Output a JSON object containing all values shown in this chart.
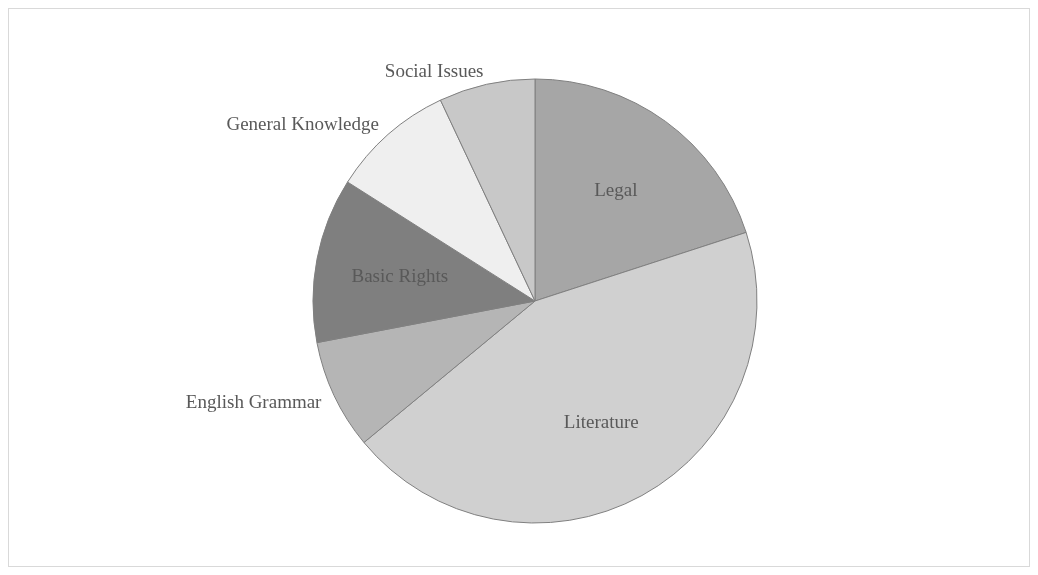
{
  "chart_data": {
    "type": "pie",
    "categories": [
      "Legal",
      "Literature",
      "English Grammar",
      "Basic Rights",
      "General Knowledge",
      "Social Issues"
    ],
    "values": [
      20,
      44,
      8,
      12,
      9,
      7
    ],
    "colors": [
      "#a6a6a6",
      "#d0d0d0",
      "#b5b5b5",
      "#7f7f7f",
      "#efefef",
      "#c8c8c8"
    ],
    "legend": false
  }
}
